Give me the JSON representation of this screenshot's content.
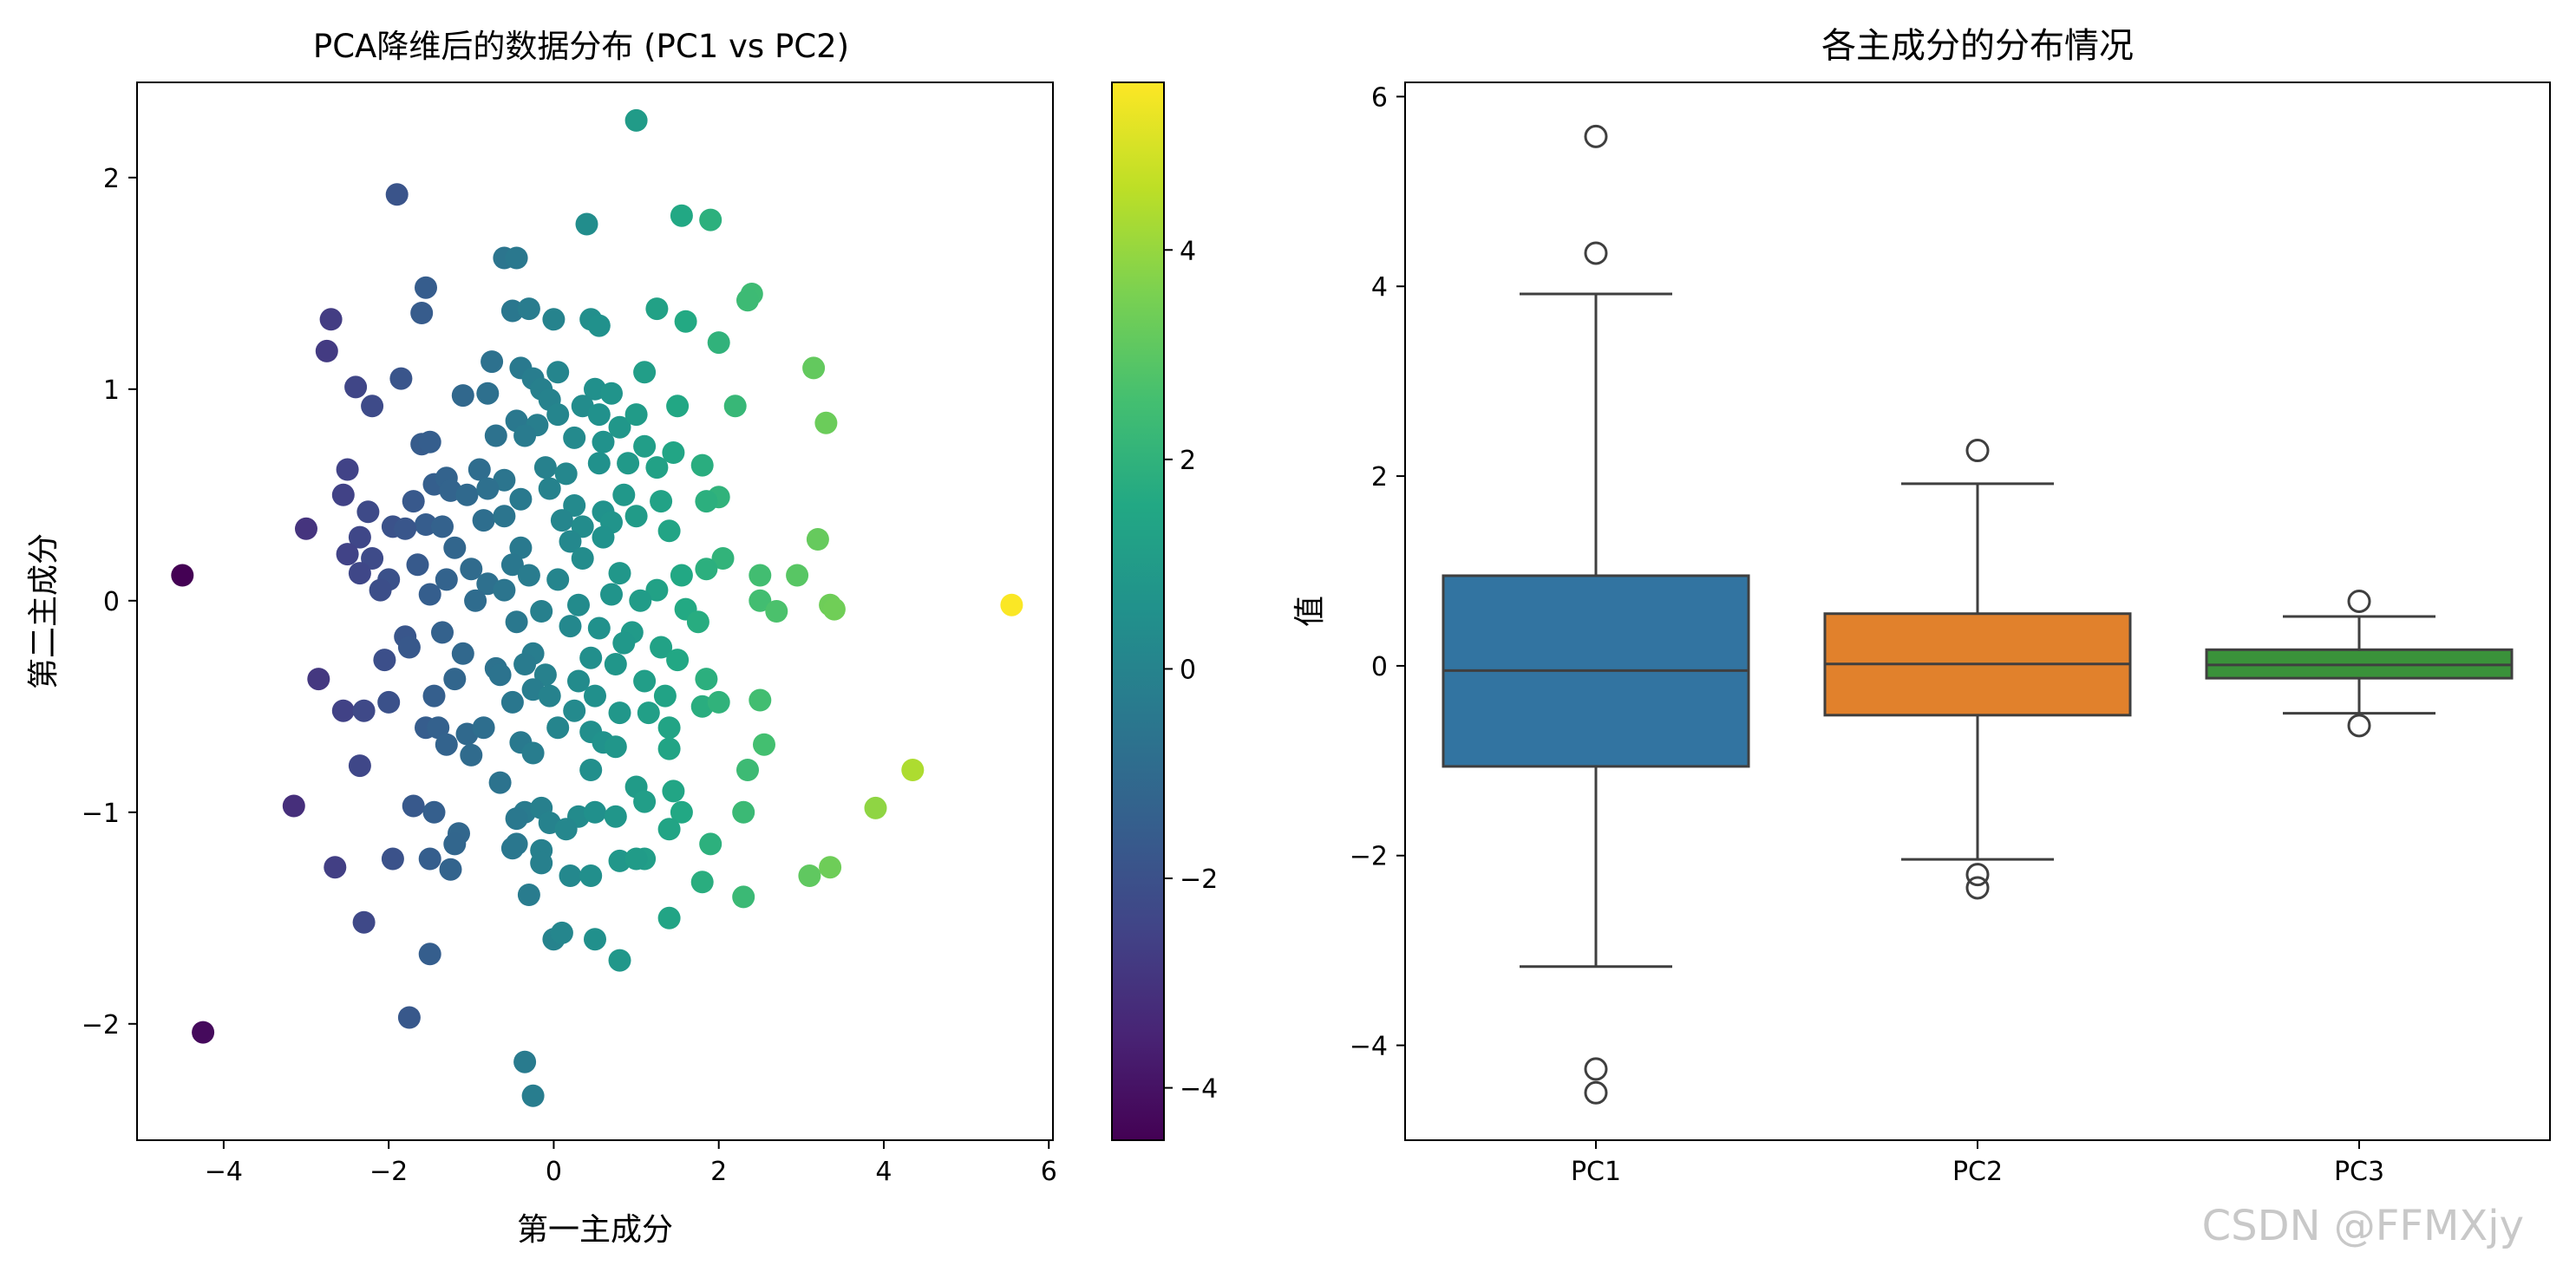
{
  "chart_data": [
    {
      "type": "scatter",
      "title": "PCA降维后的数据分布 (PC1 vs PC2)",
      "xlabel": "第一主成分",
      "ylabel": "第二主成分",
      "xlim": [
        -5.05,
        6.05
      ],
      "ylim": [
        -2.55,
        2.45
      ],
      "xticks": [
        -4,
        -2,
        0,
        2,
        4,
        6
      ],
      "yticks": [
        -2,
        -1,
        0,
        1,
        2
      ],
      "colormap": "viridis",
      "color_by": "x",
      "colorbar": {
        "range": [
          -4.5,
          5.6
        ],
        "ticks": [
          -4,
          -2,
          0,
          2,
          4
        ]
      },
      "points": [
        [
          1.0,
          2.27
        ],
        [
          -1.9,
          1.92
        ],
        [
          1.55,
          1.82
        ],
        [
          1.9,
          1.8
        ],
        [
          -0.6,
          1.62
        ],
        [
          -0.45,
          1.62
        ],
        [
          0.4,
          1.78
        ],
        [
          2.4,
          1.45
        ],
        [
          2.35,
          1.42
        ],
        [
          -1.55,
          1.48
        ],
        [
          -0.5,
          1.37
        ],
        [
          -0.3,
          1.38
        ],
        [
          -1.6,
          1.36
        ],
        [
          -2.7,
          1.33
        ],
        [
          0.45,
          1.33
        ],
        [
          0.55,
          1.3
        ],
        [
          1.25,
          1.38
        ],
        [
          1.6,
          1.32
        ],
        [
          0.0,
          1.33
        ],
        [
          -2.75,
          1.18
        ],
        [
          2.0,
          1.22
        ],
        [
          3.15,
          1.1
        ],
        [
          -0.75,
          1.13
        ],
        [
          -0.4,
          1.1
        ],
        [
          -0.25,
          1.05
        ],
        [
          0.05,
          1.08
        ],
        [
          1.1,
          1.08
        ],
        [
          -2.4,
          1.01
        ],
        [
          -1.85,
          1.05
        ],
        [
          -1.1,
          0.97
        ],
        [
          -0.15,
          1.0
        ],
        [
          0.5,
          1.0
        ],
        [
          0.7,
          0.98
        ],
        [
          -2.2,
          0.92
        ],
        [
          -0.8,
          0.98
        ],
        [
          -0.05,
          0.95
        ],
        [
          0.35,
          0.92
        ],
        [
          0.55,
          0.88
        ],
        [
          2.2,
          0.92
        ],
        [
          3.3,
          0.84
        ],
        [
          -0.45,
          0.85
        ],
        [
          -0.2,
          0.83
        ],
        [
          0.05,
          0.88
        ],
        [
          0.8,
          0.82
        ],
        [
          1.0,
          0.88
        ],
        [
          1.5,
          0.92
        ],
        [
          -1.6,
          0.74
        ],
        [
          -1.5,
          0.75
        ],
        [
          -0.7,
          0.78
        ],
        [
          -0.35,
          0.78
        ],
        [
          0.25,
          0.77
        ],
        [
          0.6,
          0.75
        ],
        [
          1.1,
          0.73
        ],
        [
          1.45,
          0.7
        ],
        [
          1.8,
          0.64
        ],
        [
          -2.5,
          0.62
        ],
        [
          -1.45,
          0.55
        ],
        [
          -1.3,
          0.58
        ],
        [
          -0.9,
          0.62
        ],
        [
          -0.6,
          0.57
        ],
        [
          -0.1,
          0.63
        ],
        [
          0.15,
          0.6
        ],
        [
          0.55,
          0.65
        ],
        [
          0.9,
          0.65
        ],
        [
          1.25,
          0.63
        ],
        [
          2.0,
          0.49
        ],
        [
          -2.55,
          0.5
        ],
        [
          -1.7,
          0.47
        ],
        [
          -1.25,
          0.52
        ],
        [
          -1.05,
          0.5
        ],
        [
          -0.8,
          0.53
        ],
        [
          -0.4,
          0.48
        ],
        [
          -0.05,
          0.53
        ],
        [
          0.25,
          0.45
        ],
        [
          0.6,
          0.42
        ],
        [
          0.85,
          0.5
        ],
        [
          1.3,
          0.47
        ],
        [
          1.85,
          0.47
        ],
        [
          -2.25,
          0.42
        ],
        [
          -1.95,
          0.35
        ],
        [
          -1.55,
          0.36
        ],
        [
          -1.35,
          0.35
        ],
        [
          -0.85,
          0.38
        ],
        [
          -0.6,
          0.4
        ],
        [
          0.1,
          0.38
        ],
        [
          0.35,
          0.35
        ],
        [
          0.7,
          0.37
        ],
        [
          1.0,
          0.4
        ],
        [
          1.4,
          0.33
        ],
        [
          -3.0,
          0.34
        ],
        [
          -2.35,
          0.3
        ],
        [
          -1.8,
          0.34
        ],
        [
          -1.2,
          0.25
        ],
        [
          -0.4,
          0.25
        ],
        [
          0.2,
          0.28
        ],
        [
          0.6,
          0.3
        ],
        [
          3.2,
          0.29
        ],
        [
          -2.5,
          0.22
        ],
        [
          -2.2,
          0.2
        ],
        [
          -1.65,
          0.17
        ],
        [
          -1.0,
          0.15
        ],
        [
          -0.5,
          0.17
        ],
        [
          0.35,
          0.2
        ],
        [
          1.55,
          0.12
        ],
        [
          2.05,
          0.2
        ],
        [
          -2.35,
          0.13
        ],
        [
          -2.0,
          0.1
        ],
        [
          -1.3,
          0.1
        ],
        [
          -0.8,
          0.08
        ],
        [
          -0.3,
          0.12
        ],
        [
          0.05,
          0.1
        ],
        [
          0.8,
          0.13
        ],
        [
          1.25,
          0.05
        ],
        [
          1.85,
          0.15
        ],
        [
          2.5,
          0.12
        ],
        [
          2.95,
          0.12
        ],
        [
          -4.5,
          0.12
        ],
        [
          -2.1,
          0.05
        ],
        [
          -1.5,
          0.03
        ],
        [
          -0.95,
          0.0
        ],
        [
          -0.6,
          0.05
        ],
        [
          -0.15,
          -0.05
        ],
        [
          0.3,
          -0.02
        ],
        [
          0.7,
          0.03
        ],
        [
          1.05,
          0.0
        ],
        [
          1.6,
          -0.04
        ],
        [
          2.5,
          0.0
        ],
        [
          2.7,
          -0.05
        ],
        [
          3.35,
          -0.02
        ],
        [
          3.4,
          -0.04
        ],
        [
          5.55,
          -0.02
        ],
        [
          -1.8,
          -0.17
        ],
        [
          -1.35,
          -0.15
        ],
        [
          -0.45,
          -0.1
        ],
        [
          0.2,
          -0.12
        ],
        [
          0.55,
          -0.13
        ],
        [
          0.95,
          -0.15
        ],
        [
          1.75,
          -0.1
        ],
        [
          -1.75,
          -0.22
        ],
        [
          -1.1,
          -0.25
        ],
        [
          -0.25,
          -0.25
        ],
        [
          0.45,
          -0.27
        ],
        [
          0.85,
          -0.2
        ],
        [
          1.3,
          -0.22
        ],
        [
          -2.05,
          -0.28
        ],
        [
          -0.7,
          -0.32
        ],
        [
          -0.35,
          -0.3
        ],
        [
          0.75,
          -0.3
        ],
        [
          1.5,
          -0.28
        ],
        [
          -2.85,
          -0.37
        ],
        [
          -1.2,
          -0.37
        ],
        [
          -0.65,
          -0.35
        ],
        [
          -0.1,
          -0.35
        ],
        [
          0.3,
          -0.38
        ],
        [
          1.1,
          -0.38
        ],
        [
          -0.25,
          -0.42
        ],
        [
          1.85,
          -0.37
        ],
        [
          -1.45,
          -0.45
        ],
        [
          -0.5,
          -0.48
        ],
        [
          -0.05,
          -0.45
        ],
        [
          0.5,
          -0.45
        ],
        [
          1.35,
          -0.45
        ],
        [
          1.8,
          -0.5
        ],
        [
          2.0,
          -0.48
        ],
        [
          2.5,
          -0.47
        ],
        [
          -2.55,
          -0.52
        ],
        [
          -2.3,
          -0.52
        ],
        [
          -2.0,
          -0.48
        ],
        [
          0.25,
          -0.52
        ],
        [
          0.8,
          -0.53
        ],
        [
          1.15,
          -0.53
        ],
        [
          -1.55,
          -0.6
        ],
        [
          -1.4,
          -0.6
        ],
        [
          -1.05,
          -0.63
        ],
        [
          -0.85,
          -0.6
        ],
        [
          0.05,
          -0.6
        ],
        [
          0.45,
          -0.62
        ],
        [
          1.4,
          -0.6
        ],
        [
          -1.3,
          -0.68
        ],
        [
          -0.4,
          -0.67
        ],
        [
          0.6,
          -0.67
        ],
        [
          0.75,
          -0.69
        ],
        [
          1.4,
          -0.7
        ],
        [
          2.55,
          -0.68
        ],
        [
          -2.35,
          -0.78
        ],
        [
          -1.0,
          -0.73
        ],
        [
          -0.25,
          -0.72
        ],
        [
          0.45,
          -0.8
        ],
        [
          2.35,
          -0.8
        ],
        [
          4.35,
          -0.8
        ],
        [
          -0.65,
          -0.86
        ],
        [
          1.0,
          -0.88
        ],
        [
          1.45,
          -0.9
        ],
        [
          1.1,
          -0.95
        ],
        [
          -3.15,
          -0.97
        ],
        [
          -1.7,
          -0.97
        ],
        [
          -1.45,
          -1.0
        ],
        [
          -0.35,
          -1.0
        ],
        [
          -0.15,
          -0.98
        ],
        [
          0.3,
          -1.02
        ],
        [
          0.5,
          -1.0
        ],
        [
          1.55,
          -1.0
        ],
        [
          2.3,
          -1.0
        ],
        [
          3.9,
          -0.98
        ],
        [
          -0.45,
          -1.03
        ],
        [
          -0.05,
          -1.05
        ],
        [
          0.75,
          -1.02
        ],
        [
          -1.15,
          -1.1
        ],
        [
          0.15,
          -1.08
        ],
        [
          1.4,
          -1.08
        ],
        [
          -1.2,
          -1.15
        ],
        [
          -0.45,
          -1.15
        ],
        [
          -0.15,
          -1.18
        ],
        [
          -0.5,
          -1.17
        ],
        [
          1.1,
          -1.22
        ],
        [
          1.9,
          -1.15
        ],
        [
          -2.65,
          -1.26
        ],
        [
          -1.95,
          -1.22
        ],
        [
          -1.5,
          -1.22
        ],
        [
          -1.25,
          -1.27
        ],
        [
          -0.15,
          -1.24
        ],
        [
          0.2,
          -1.3
        ],
        [
          0.45,
          -1.3
        ],
        [
          0.8,
          -1.23
        ],
        [
          1.0,
          -1.22
        ],
        [
          3.1,
          -1.3
        ],
        [
          3.35,
          -1.26
        ],
        [
          -0.3,
          -1.39
        ],
        [
          1.8,
          -1.33
        ],
        [
          2.3,
          -1.4
        ],
        [
          -2.3,
          -1.52
        ],
        [
          1.4,
          -1.5
        ],
        [
          0.0,
          -1.6
        ],
        [
          0.1,
          -1.57
        ],
        [
          0.5,
          -1.6
        ],
        [
          -1.5,
          -1.67
        ],
        [
          0.8,
          -1.7
        ],
        [
          -1.75,
          -1.97
        ],
        [
          -4.25,
          -2.04
        ],
        [
          -0.35,
          -2.18
        ],
        [
          -0.25,
          -2.34
        ]
      ]
    },
    {
      "type": "box",
      "title": "各主成分的分布情况",
      "xlabel": "",
      "ylabel": "值",
      "ylim": [
        -5.0,
        6.15
      ],
      "yticks": [
        -4,
        -2,
        0,
        2,
        4,
        6
      ],
      "categories": [
        "PC1",
        "PC2",
        "PC3"
      ],
      "colors": [
        "#3274a1",
        "#e1812c",
        "#3a923a"
      ],
      "boxes": [
        {
          "name": "PC1",
          "q1": -1.06,
          "median": -0.05,
          "q3": 0.95,
          "whisker_low": -3.17,
          "whisker_high": 3.92,
          "outliers": [
            5.58,
            4.35,
            -4.25,
            -4.5
          ]
        },
        {
          "name": "PC2",
          "q1": -0.52,
          "median": 0.02,
          "q3": 0.55,
          "whisker_low": -2.04,
          "whisker_high": 1.92,
          "outliers": [
            2.27,
            -2.2,
            -2.34
          ]
        },
        {
          "name": "PC3",
          "q1": -0.13,
          "median": 0.01,
          "q3": 0.17,
          "whisker_low": -0.5,
          "whisker_high": 0.52,
          "outliers": [
            0.68,
            -0.63
          ]
        }
      ]
    }
  ],
  "watermark": "CSDN @FFMXjy"
}
